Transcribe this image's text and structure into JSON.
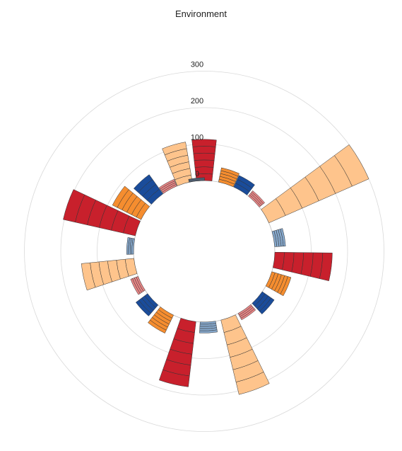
{
  "chart_data": {
    "type": "bar",
    "title": "Environment",
    "polar": true,
    "radial_ticks": [
      "0",
      "100",
      "200",
      "300"
    ],
    "radial_tick_values": [
      0,
      100,
      200,
      300
    ],
    "ylim": [
      0,
      310
    ],
    "grid": true,
    "legend": "none",
    "colors": {
      "dark_red": "#c8202c",
      "orange": "#f58d2f",
      "light_orange": "#fec48c",
      "dark_blue": "#1a4c9a",
      "light_blue": "#86a8cc",
      "pink": "#e88585",
      "slate": "#4e5d6e"
    },
    "bars": [
      {
        "angle_deg": 0,
        "value": 113,
        "color": "#c8202c",
        "segments": 6
      },
      {
        "angle_deg": 18,
        "value": 40,
        "color": "#f58d2f",
        "segments": 5
      },
      {
        "angle_deg": 31,
        "value": 35,
        "color": "#1a4c9a",
        "segments": 3
      },
      {
        "angle_deg": 45,
        "value": 19,
        "color": "#e88585",
        "segments": 4
      },
      {
        "angle_deg": 60,
        "value": 300,
        "color": "#fec48c",
        "segments": 6
      },
      {
        "angle_deg": 80,
        "value": 30,
        "color": "#86a8cc",
        "segments": 5
      },
      {
        "angle_deg": 97,
        "value": 158,
        "color": "#c8202c",
        "segments": 6
      },
      {
        "angle_deg": 113,
        "value": 55,
        "color": "#f58d2f",
        "segments": 6
      },
      {
        "angle_deg": 131,
        "value": 40,
        "color": "#1a4c9a",
        "segments": 4
      },
      {
        "angle_deg": 145,
        "value": 20,
        "color": "#e88585",
        "segments": 4
      },
      {
        "angle_deg": 160,
        "value": 210,
        "color": "#fec48c",
        "segments": 6
      },
      {
        "angle_deg": 177,
        "value": 30,
        "color": "#86a8cc",
        "segments": 5
      },
      {
        "angle_deg": 193,
        "value": 180,
        "color": "#c8202c",
        "segments": 6
      },
      {
        "angle_deg": 212,
        "value": 55,
        "color": "#f58d2f",
        "segments": 6
      },
      {
        "angle_deg": 227,
        "value": 40,
        "color": "#1a4c9a",
        "segments": 4
      },
      {
        "angle_deg": 243,
        "value": 22,
        "color": "#e88585",
        "segments": 4
      },
      {
        "angle_deg": 258,
        "value": 145,
        "color": "#fec48c",
        "segments": 6
      },
      {
        "angle_deg": 274,
        "value": 19,
        "color": "#86a8cc",
        "segments": 4
      },
      {
        "angle_deg": 289,
        "value": 203,
        "color": "#c8202c",
        "segments": 6
      },
      {
        "angle_deg": 303,
        "value": 88,
        "color": "#f58d2f",
        "segments": 6
      },
      {
        "angle_deg": 318,
        "value": 65,
        "color": "#1a4c9a",
        "segments": 4
      },
      {
        "angle_deg": 331,
        "value": 20,
        "color": "#e88585",
        "segments": 4
      },
      {
        "angle_deg": 344,
        "value": 110,
        "color": "#fec48c",
        "segments": 6
      },
      {
        "angle_deg": 354,
        "value": 8,
        "color": "#4e5d6e",
        "segments": 1
      }
    ]
  }
}
